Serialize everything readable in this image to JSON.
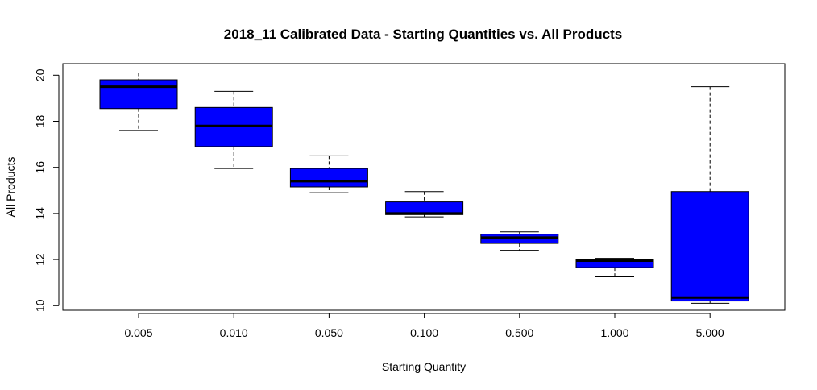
{
  "chart_data": {
    "type": "box",
    "title": "2018_11 Calibrated Data - Starting Quantities vs. All Products",
    "xlabel": "Starting Quantity",
    "ylabel": "All Products",
    "ylim": [
      9.8,
      20.5
    ],
    "yticks": [
      10,
      12,
      14,
      16,
      18,
      20
    ],
    "y_tick_labels": [
      "10",
      "12",
      "14",
      "16",
      "18",
      "20"
    ],
    "grid": false,
    "legend": "none",
    "box_color": "#0000ff",
    "categories": [
      "0.005",
      "0.010",
      "0.050",
      "0.100",
      "0.500",
      "1.000",
      "5.000"
    ],
    "boxes": [
      {
        "category": "0.005",
        "min": 17.6,
        "q1": 18.55,
        "median": 19.5,
        "q3": 19.8,
        "max": 20.1
      },
      {
        "category": "0.010",
        "min": 15.95,
        "q1": 16.9,
        "median": 17.8,
        "q3": 18.6,
        "max": 19.3
      },
      {
        "category": "0.050",
        "min": 14.9,
        "q1": 15.15,
        "median": 15.4,
        "q3": 15.95,
        "max": 16.5
      },
      {
        "category": "0.100",
        "min": 13.85,
        "q1": 13.95,
        "median": 14.0,
        "q3": 14.5,
        "max": 14.95
      },
      {
        "category": "0.500",
        "min": 12.4,
        "q1": 12.7,
        "median": 12.95,
        "q3": 13.1,
        "max": 13.2
      },
      {
        "category": "1.000",
        "min": 11.25,
        "q1": 11.65,
        "median": 11.95,
        "q3": 12.0,
        "max": 12.05
      },
      {
        "category": "5.000",
        "min": 10.1,
        "q1": 10.2,
        "median": 10.35,
        "q3": 14.95,
        "max": 19.5
      }
    ]
  }
}
